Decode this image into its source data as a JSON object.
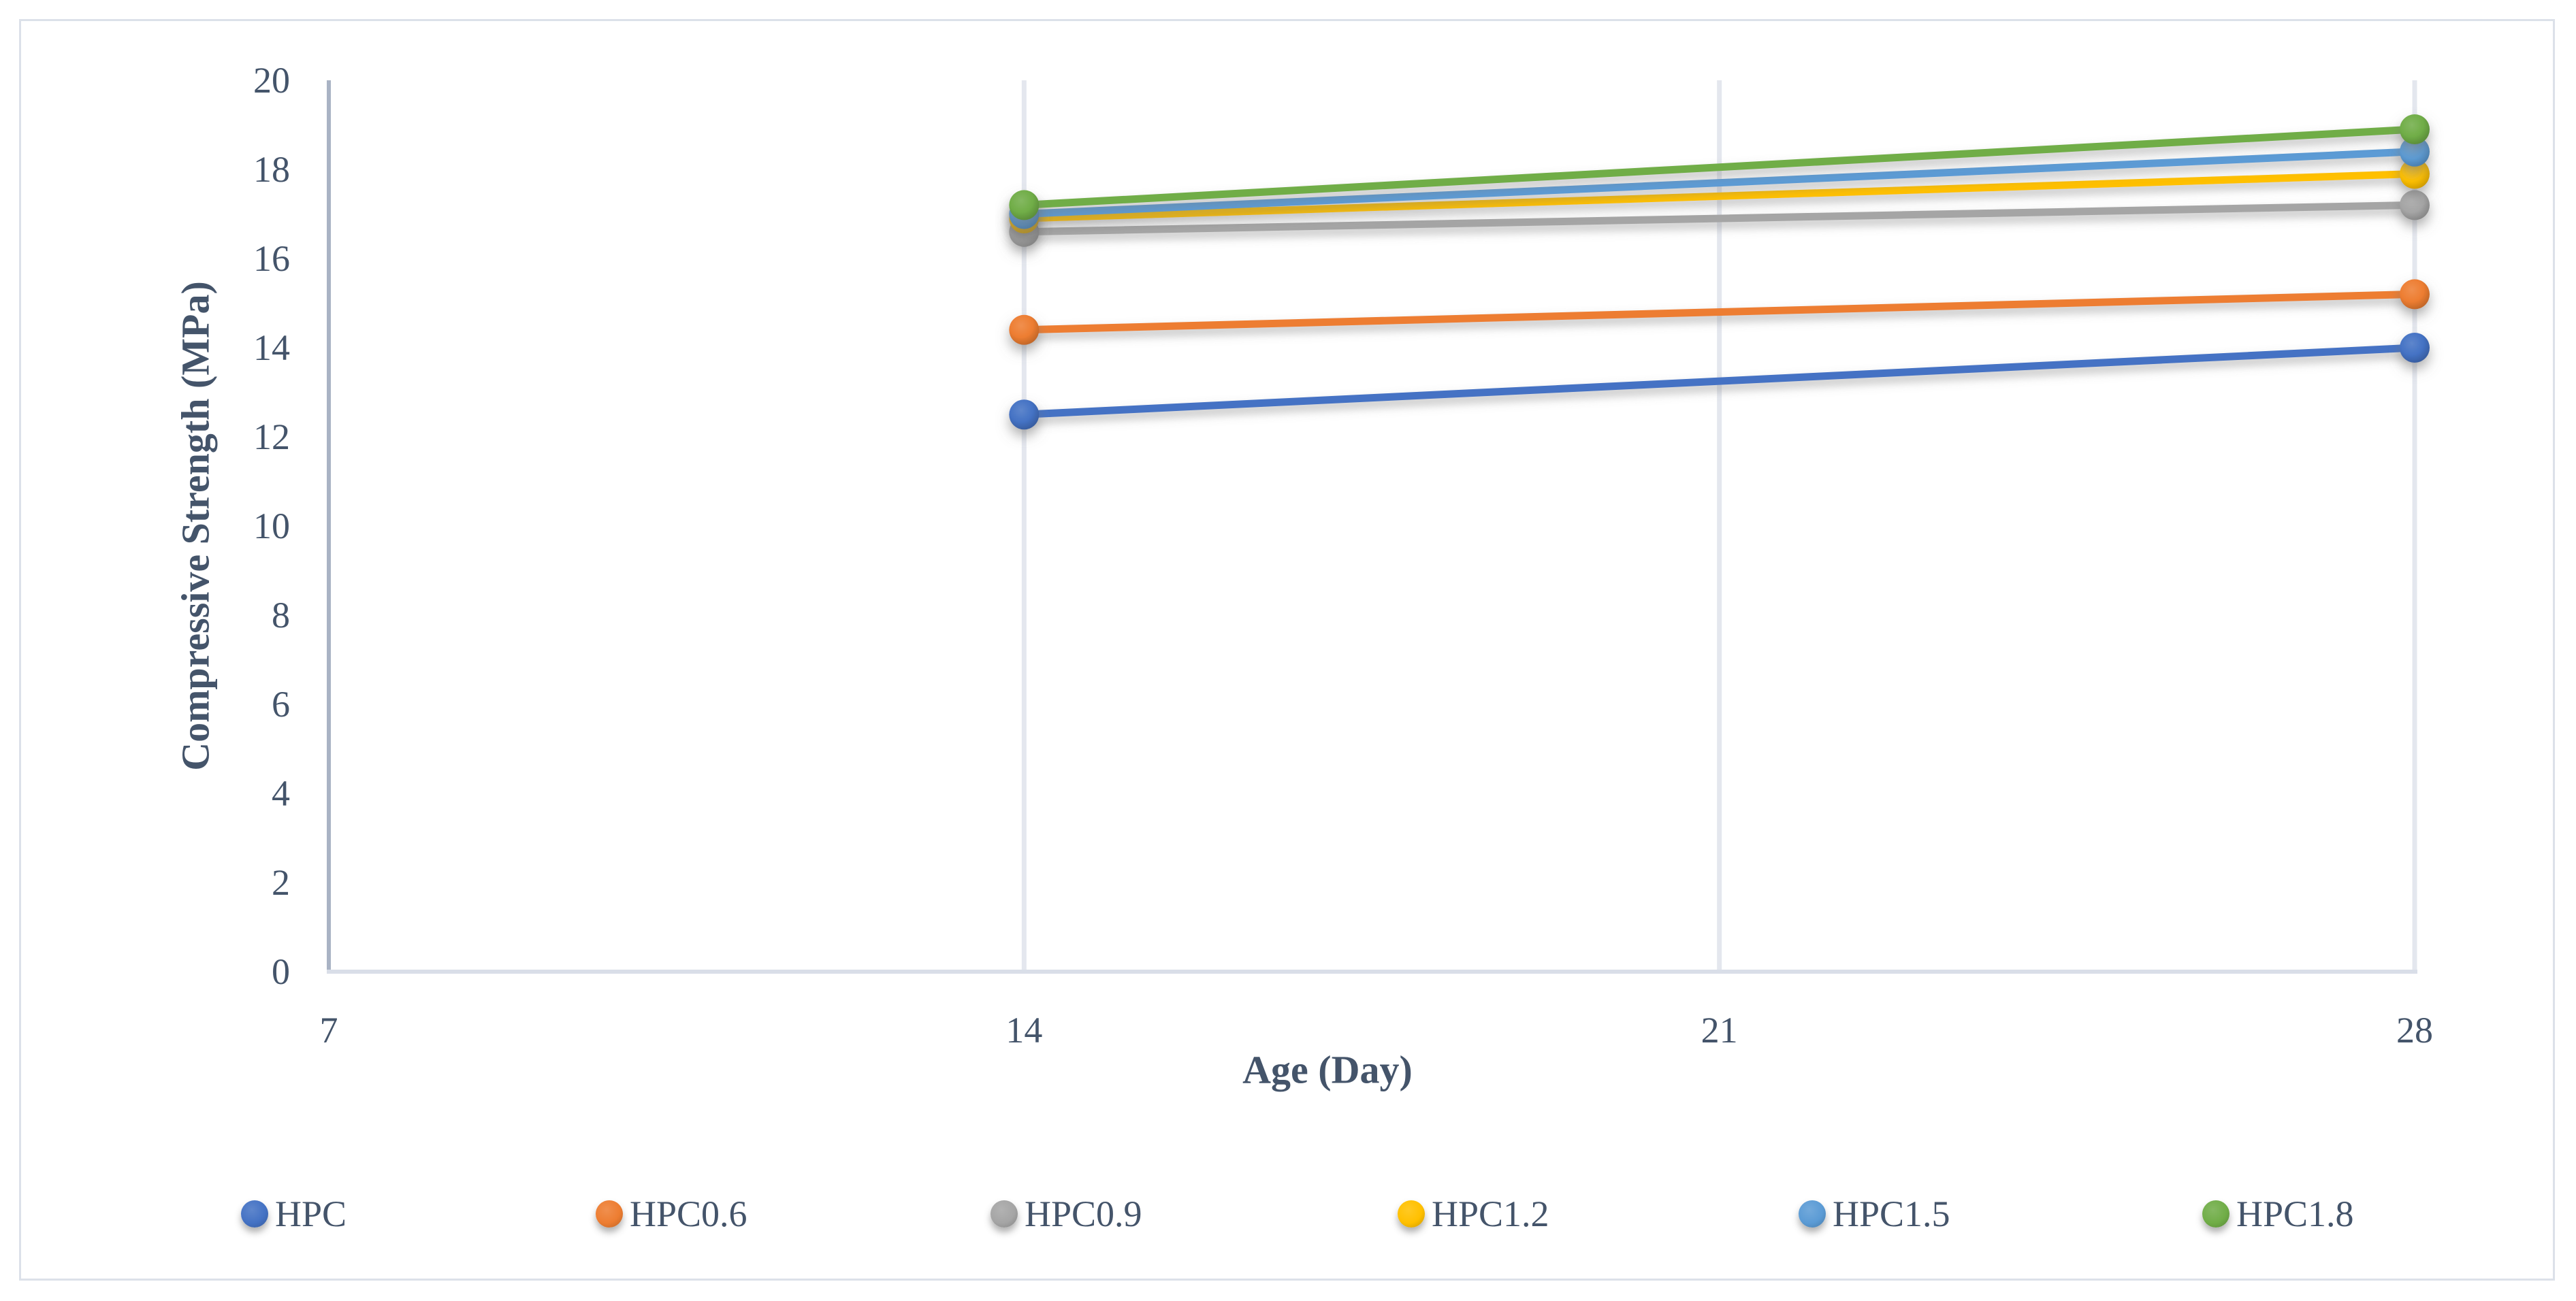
{
  "colors": {
    "text": "#44546A",
    "y_axis_line": "#A9B3C4",
    "x_axis_line": "#D9DEE8",
    "gridline": "#E4E7EE",
    "figure_border": "#DCE1E9",
    "background": "#FFFFFF"
  },
  "chart_data": {
    "type": "line",
    "x": [
      14,
      28
    ],
    "x_axis": {
      "title": "Age (Day)",
      "ticks": [
        7,
        14,
        21,
        28
      ],
      "range": [
        7,
        28
      ],
      "gridlines_at": [
        14,
        21,
        28
      ]
    },
    "y_axis": {
      "title": "Compressive Strength (MPa)",
      "ticks": [
        0,
        2,
        4,
        6,
        8,
        10,
        12,
        14,
        16,
        18,
        20
      ],
      "range": [
        0,
        20
      ]
    },
    "grid": "vertical-only",
    "legend_position": "bottom",
    "series": [
      {
        "name": "HPC",
        "color": "#4472C4",
        "values": [
          12.5,
          14.0
        ]
      },
      {
        "name": "HPC0.6",
        "color": "#ED7D31",
        "values": [
          14.4,
          15.2
        ]
      },
      {
        "name": "HPC0.9",
        "color": "#A5A5A5",
        "values": [
          16.6,
          17.2
        ]
      },
      {
        "name": "HPC1.2",
        "color": "#FFC000",
        "values": [
          16.9,
          17.9
        ]
      },
      {
        "name": "HPC1.5",
        "color": "#5B9BD5",
        "values": [
          17.0,
          18.4
        ]
      },
      {
        "name": "HPC1.8",
        "color": "#70AD47",
        "values": [
          17.2,
          18.9
        ]
      }
    ]
  }
}
